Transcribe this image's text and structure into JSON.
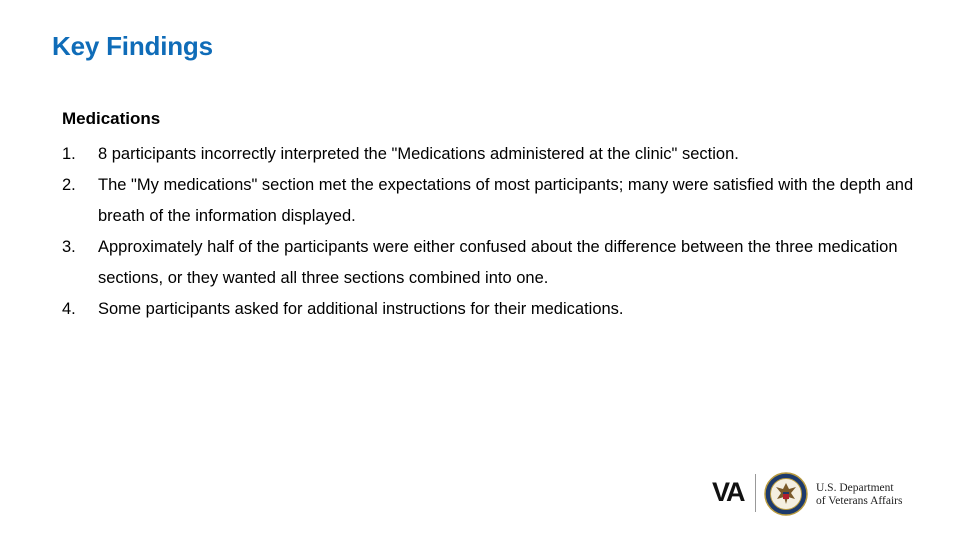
{
  "slide": {
    "title": "Key Findings",
    "section": {
      "heading": "Medications",
      "items": [
        {
          "num": "1.",
          "text": "8 participants incorrectly interpreted the \"Medications administered at the clinic\" section."
        },
        {
          "num": "2.",
          "text": "The \"My medications\" section met the expectations of most participants; many were satisfied with the depth and breath of the information displayed."
        },
        {
          "num": "3.",
          "text": "Approximately half of the participants were either confused about the difference between the three medication sections, or they wanted all three sections combined into one."
        },
        {
          "num": "4.",
          "text": "Some participants asked for additional instructions for their medications."
        }
      ]
    }
  },
  "footer": {
    "logo_text": "VA",
    "department_line1": "U.S. Department",
    "department_line2": "of Veterans Affairs",
    "seal_icon": "va-seal-icon"
  },
  "colors": {
    "title": "#0f6cb8",
    "body_text": "#000000",
    "background": "#ffffff"
  }
}
